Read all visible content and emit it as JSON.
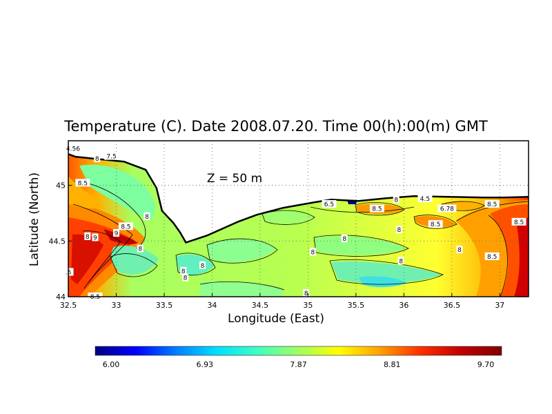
{
  "chart_data": {
    "type": "heatmap",
    "title": "Temperature (C). Date 2008.07.20. Time 00(h):00(m) GMT",
    "xlabel": "Longitude (East)",
    "ylabel": "Latitude (North)",
    "annotation": "Z = 50 m",
    "xlim": [
      32.5,
      37.3
    ],
    "ylim": [
      44.0,
      45.4
    ],
    "x_ticks": [
      "32.5",
      "33",
      "33.5",
      "34",
      "34.5",
      "35",
      "35.5",
      "36",
      "36.5",
      "37"
    ],
    "y_ticks": [
      "44",
      "44.5",
      "45"
    ],
    "grid": true,
    "colorbar": {
      "min": 6.0,
      "max": 9.7,
      "tick_labels": [
        "6.00",
        "6.93",
        "7.87",
        "8.81",
        "9.70"
      ],
      "colors": [
        "#000080",
        "#0000ff",
        "#0080ff",
        "#00e0ff",
        "#40ffc0",
        "#a0ff60",
        "#ffff00",
        "#ffa000",
        "#ff3000",
        "#c00000",
        "#800000"
      ]
    },
    "contour_labels": [
      {
        "text": "4.56",
        "x": 32.55,
        "y": 45.33
      },
      {
        "text": "8",
        "x": 32.8,
        "y": 45.24
      },
      {
        "text": "7.5",
        "x": 32.95,
        "y": 45.26
      },
      {
        "text": "8.5",
        "x": 32.65,
        "y": 45.02
      },
      {
        "text": "9",
        "x": 33.0,
        "y": 44.57
      },
      {
        "text": "8",
        "x": 32.7,
        "y": 44.54
      },
      {
        "text": "9",
        "x": 32.78,
        "y": 44.53
      },
      {
        "text": "8.5",
        "x": 33.1,
        "y": 44.63
      },
      {
        "text": "8",
        "x": 33.32,
        "y": 44.72
      },
      {
        "text": "8",
        "x": 33.25,
        "y": 44.43
      },
      {
        "text": "8",
        "x": 33.7,
        "y": 44.23
      },
      {
        "text": "8",
        "x": 33.72,
        "y": 44.17
      },
      {
        "text": "8",
        "x": 33.9,
        "y": 44.28
      },
      {
        "text": "8",
        "x": 34.98,
        "y": 44.03
      },
      {
        "text": "8",
        "x": 35.05,
        "y": 44.4
      },
      {
        "text": "8",
        "x": 35.38,
        "y": 44.52
      },
      {
        "text": "6.5",
        "x": 35.22,
        "y": 44.83
      },
      {
        "text": "8.5",
        "x": 35.72,
        "y": 44.79
      },
      {
        "text": "8",
        "x": 35.92,
        "y": 44.87
      },
      {
        "text": "4.5",
        "x": 36.22,
        "y": 44.88
      },
      {
        "text": "6.78",
        "x": 36.45,
        "y": 44.79
      },
      {
        "text": "8.5",
        "x": 36.33,
        "y": 44.65
      },
      {
        "text": "8",
        "x": 35.95,
        "y": 44.6
      },
      {
        "text": "8",
        "x": 35.97,
        "y": 44.32
      },
      {
        "text": "8",
        "x": 36.58,
        "y": 44.42
      },
      {
        "text": "8.5",
        "x": 36.92,
        "y": 44.83
      },
      {
        "text": "8.5",
        "x": 37.2,
        "y": 44.67
      },
      {
        "text": "8.5",
        "x": 36.92,
        "y": 44.36
      },
      {
        "text": "8.5",
        "x": 32.78,
        "y": 44.0
      },
      {
        "text": ".5",
        "x": 32.5,
        "y": 44.22
      }
    ]
  }
}
